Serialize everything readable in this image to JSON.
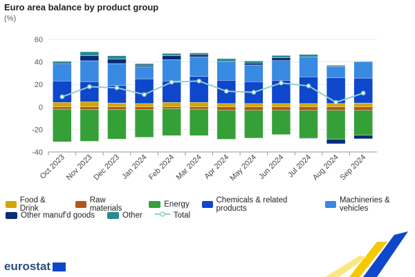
{
  "chart_data": {
    "type": "bar",
    "title": "Euro area balance by product group",
    "ylabel": "(%)",
    "ylim": [
      -40,
      60
    ],
    "yticks": [
      -40,
      -20,
      0,
      20,
      40,
      60
    ],
    "grid": true,
    "stacked": true,
    "legend_placement": "bottom",
    "categories": [
      "Oct 2023",
      "Nov 2023",
      "Dec 2023",
      "Jan 2024",
      "Feb 2024",
      "Mar 2024",
      "Apr 2024",
      "May 2024",
      "Jun 2024",
      "Jul 2024",
      "Aug 2024",
      "Sep 2024"
    ],
    "series": [
      {
        "name": "Food & Drink",
        "color": "#d4a500",
        "values": [
          4,
          4.5,
          3.5,
          3,
          4,
          4,
          3,
          3,
          3,
          3,
          3,
          3.5
        ]
      },
      {
        "name": "Raw materials",
        "color": "#b0581a",
        "values": [
          -2,
          -2.5,
          -2.5,
          -2.5,
          -1.5,
          -2,
          -3,
          -3,
          -3,
          -3,
          -3,
          -3
        ]
      },
      {
        "name": "Energy",
        "color": "#35a037",
        "values": [
          -29,
          -28,
          -26,
          -24.5,
          -24,
          -23.5,
          -25.7,
          -24.7,
          -21.6,
          -24.3,
          -25.7,
          -22.2
        ]
      },
      {
        "name": "Chemicals & related products",
        "color": "#0e47cb",
        "values": [
          19,
          18,
          15.5,
          22,
          19,
          23,
          20.6,
          19.4,
          20.6,
          23.7,
          23,
          22.1
        ]
      },
      {
        "name": "Machineries & vehicles",
        "color": "#388ae2",
        "values": [
          15,
          18.5,
          19.5,
          10.5,
          19,
          17.5,
          16.8,
          14.9,
          17.6,
          17.8,
          9.9,
          14.4
        ]
      },
      {
        "name": "Other manuf'd goods",
        "color": "#082b7a",
        "values": [
          1,
          4.5,
          4,
          1,
          3.5,
          2,
          0,
          1.7,
          2.5,
          -0.7,
          -4,
          -3.1
        ]
      },
      {
        "name": "Other",
        "color": "#2a8a8f",
        "values": [
          1.5,
          3.5,
          3,
          2,
          2,
          1.5,
          2.5,
          1.8,
          2,
          2.1,
          1.1,
          0.6
        ]
      }
    ],
    "line_series": {
      "name": "Total",
      "color": "#8ecfca",
      "values": [
        9,
        18,
        17,
        11,
        22,
        23,
        14,
        13,
        21.3,
        18.7,
        4.1,
        12.3
      ]
    }
  },
  "branding": {
    "logo": "eurostat"
  }
}
